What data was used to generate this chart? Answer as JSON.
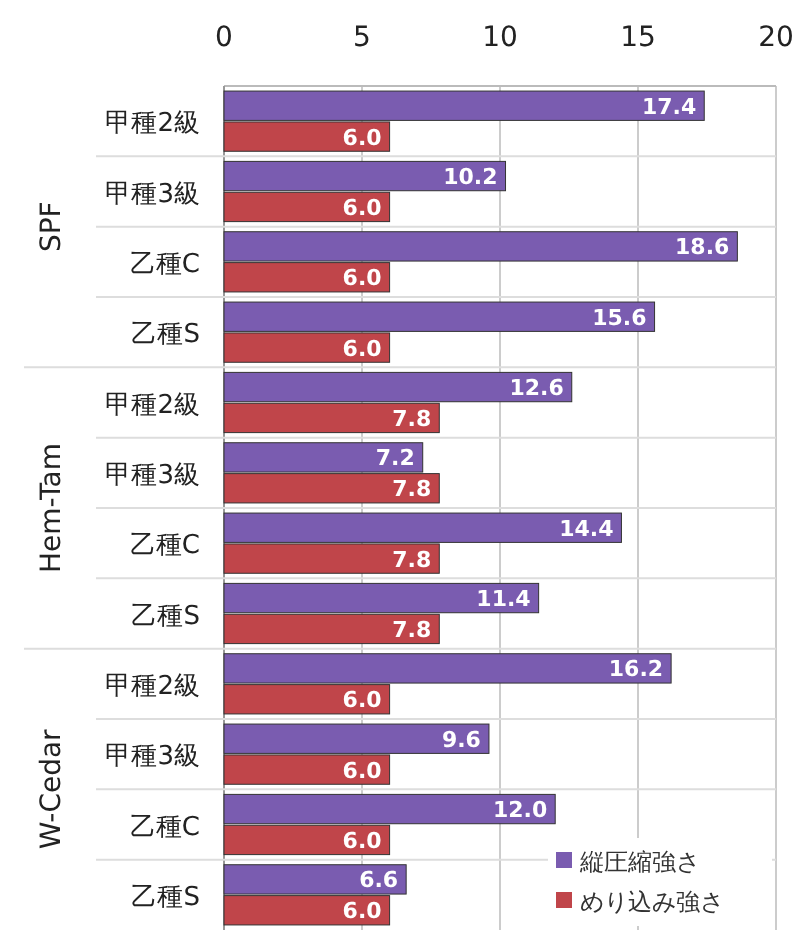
{
  "chart_data": {
    "type": "bar",
    "orientation": "horizontal",
    "categories": [
      "甲種2級",
      "甲種3級",
      "乙種C",
      "乙種S",
      "甲種2級",
      "甲種3級",
      "乙種C",
      "乙種S",
      "甲種2級",
      "甲種3級",
      "乙種C",
      "乙種S"
    ],
    "series": [
      {
        "name": "縦圧縮強さ",
        "color": "#7a5cb0",
        "values": [
          17.4,
          10.2,
          18.6,
          15.6,
          12.6,
          7.2,
          14.4,
          11.4,
          16.2,
          9.6,
          12,
          6.6
        ],
        "value_labels": [
          "17.4",
          "10.2",
          "18.6",
          "15.6",
          "12.6",
          "7.2",
          "14.4",
          "11.4",
          "16.2",
          "9.6",
          "12.0",
          "6.6"
        ]
      },
      {
        "name": "めり込み強さ",
        "color": "#c0454a",
        "values": [
          6,
          6,
          6,
          6,
          7.8,
          7.8,
          7.8,
          7.8,
          6,
          6,
          6,
          6
        ],
        "value_labels": [
          "6.0",
          "6.0",
          "6.0",
          "6.0",
          "7.8",
          "7.8",
          "7.8",
          "7.8",
          "6.0",
          "6.0",
          "6.0",
          "6.0"
        ]
      }
    ],
    "xlim": [
      0,
      20
    ],
    "xticks": [
      0,
      5,
      10,
      15,
      20
    ],
    "grid": "x",
    "legend": "bottom right",
    "annotations": [
      "SPF",
      "Hem-Tam",
      "W-Cedar"
    ]
  }
}
